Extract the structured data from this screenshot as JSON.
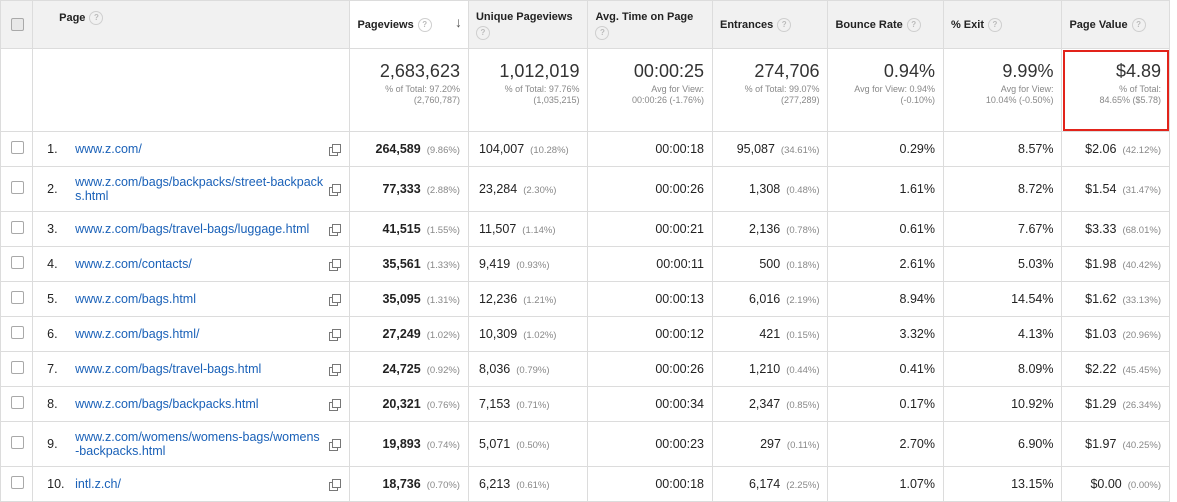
{
  "columns": {
    "page": "Page",
    "pageviews": "Pageviews",
    "unique_pageviews": "Unique Pageviews",
    "avg_time": "Avg. Time on Page",
    "entrances": "Entrances",
    "bounce_rate": "Bounce Rate",
    "exit": "% Exit",
    "page_value": "Page Value"
  },
  "help_glyph": "?",
  "sort_glyph": "↓",
  "totals": {
    "pageviews": {
      "main": "2,683,623",
      "sub1": "% of Total: 97.20%",
      "sub2": "(2,760,787)"
    },
    "unique_pageviews": {
      "main": "1,012,019",
      "sub1": "% of Total: 97.76%",
      "sub2": "(1,035,215)"
    },
    "avg_time": {
      "main": "00:00:25",
      "sub1": "Avg for View:",
      "sub2": "00:00:26 (-1.76%)"
    },
    "entrances": {
      "main": "274,706",
      "sub1": "% of Total: 99.07%",
      "sub2": "(277,289)"
    },
    "bounce_rate": {
      "main": "0.94%",
      "sub1": "Avg for View: 0.94%",
      "sub2": "(-0.10%)"
    },
    "exit": {
      "main": "9.99%",
      "sub1": "Avg for View:",
      "sub2": "10.04% (-0.50%)"
    },
    "page_value": {
      "main": "$4.89",
      "sub1": "% of Total:",
      "sub2": "84.65% ($5.78)"
    }
  },
  "rows": [
    {
      "num": "1.",
      "page": "www.z.com/",
      "pv": "264,589",
      "pv_pct": "(9.86%)",
      "upv": "104,007",
      "upv_pct": "(10.28%)",
      "avg": "00:00:18",
      "ent": "95,087",
      "ent_pct": "(34.61%)",
      "br": "0.29%",
      "exit": "8.57%",
      "val": "$2.06",
      "val_pct": "(42.12%)"
    },
    {
      "num": "2.",
      "page": "www.z.com/bags/backpacks/street-backpacks.html",
      "pv": "77,333",
      "pv_pct": "(2.88%)",
      "upv": "23,284",
      "upv_pct": "(2.30%)",
      "avg": "00:00:26",
      "ent": "1,308",
      "ent_pct": "(0.48%)",
      "br": "1.61%",
      "exit": "8.72%",
      "val": "$1.54",
      "val_pct": "(31.47%)"
    },
    {
      "num": "3.",
      "page": "www.z.com/bags/travel-bags/luggage.html",
      "pv": "41,515",
      "pv_pct": "(1.55%)",
      "upv": "11,507",
      "upv_pct": "(1.14%)",
      "avg": "00:00:21",
      "ent": "2,136",
      "ent_pct": "(0.78%)",
      "br": "0.61%",
      "exit": "7.67%",
      "val": "$3.33",
      "val_pct": "(68.01%)"
    },
    {
      "num": "4.",
      "page": "www.z.com/contacts/",
      "pv": "35,561",
      "pv_pct": "(1.33%)",
      "upv": "9,419",
      "upv_pct": "(0.93%)",
      "avg": "00:00:11",
      "ent": "500",
      "ent_pct": "(0.18%)",
      "br": "2.61%",
      "exit": "5.03%",
      "val": "$1.98",
      "val_pct": "(40.42%)"
    },
    {
      "num": "5.",
      "page": "www.z.com/bags.html",
      "pv": "35,095",
      "pv_pct": "(1.31%)",
      "upv": "12,236",
      "upv_pct": "(1.21%)",
      "avg": "00:00:13",
      "ent": "6,016",
      "ent_pct": "(2.19%)",
      "br": "8.94%",
      "exit": "14.54%",
      "val": "$1.62",
      "val_pct": "(33.13%)"
    },
    {
      "num": "6.",
      "page": "www.z.com/bags.html/",
      "pv": "27,249",
      "pv_pct": "(1.02%)",
      "upv": "10,309",
      "upv_pct": "(1.02%)",
      "avg": "00:00:12",
      "ent": "421",
      "ent_pct": "(0.15%)",
      "br": "3.32%",
      "exit": "4.13%",
      "val": "$1.03",
      "val_pct": "(20.96%)"
    },
    {
      "num": "7.",
      "page": "www.z.com/bags/travel-bags.html",
      "pv": "24,725",
      "pv_pct": "(0.92%)",
      "upv": "8,036",
      "upv_pct": "(0.79%)",
      "avg": "00:00:26",
      "ent": "1,210",
      "ent_pct": "(0.44%)",
      "br": "0.41%",
      "exit": "8.09%",
      "val": "$2.22",
      "val_pct": "(45.45%)"
    },
    {
      "num": "8.",
      "page": "www.z.com/bags/backpacks.html",
      "pv": "20,321",
      "pv_pct": "(0.76%)",
      "upv": "7,153",
      "upv_pct": "(0.71%)",
      "avg": "00:00:34",
      "ent": "2,347",
      "ent_pct": "(0.85%)",
      "br": "0.17%",
      "exit": "10.92%",
      "val": "$1.29",
      "val_pct": "(26.34%)"
    },
    {
      "num": "9.",
      "page": "www.z.com/womens/womens-bags/womens-backpacks.html",
      "pv": "19,893",
      "pv_pct": "(0.74%)",
      "upv": "5,071",
      "upv_pct": "(0.50%)",
      "avg": "00:00:23",
      "ent": "297",
      "ent_pct": "(0.11%)",
      "br": "2.70%",
      "exit": "6.90%",
      "val": "$1.97",
      "val_pct": "(40.25%)"
    },
    {
      "num": "10.",
      "page": "intl.z.ch/",
      "pv": "18,736",
      "pv_pct": "(0.70%)",
      "upv": "6,213",
      "upv_pct": "(0.61%)",
      "avg": "00:00:18",
      "ent": "6,174",
      "ent_pct": "(2.25%)",
      "br": "1.07%",
      "exit": "13.15%",
      "val": "$0.00",
      "val_pct": "(0.00%)"
    }
  ],
  "colors": {
    "link": "#1a61b8",
    "highlight_border": "#e2231a",
    "header_bg": "#f1f1f1"
  }
}
